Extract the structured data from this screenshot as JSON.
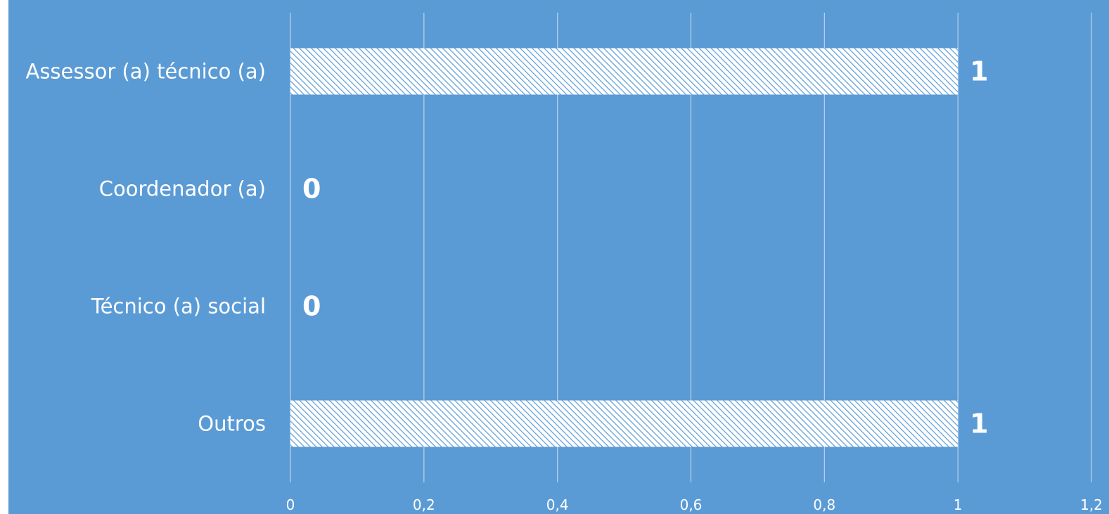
{
  "chart_data": {
    "type": "bar",
    "orientation": "horizontal",
    "categories": [
      "Assessor (a) técnico (a)",
      "Coordenador (a)",
      "Técnico (a) social",
      "Outros"
    ],
    "values": [
      1,
      0,
      0,
      1
    ],
    "data_labels": [
      "1",
      "0",
      "0",
      "1"
    ],
    "title": "",
    "xlabel": "",
    "ylabel": "",
    "xlim": [
      0,
      1.2
    ],
    "x_ticks": [
      0,
      0.2,
      0.4,
      0.6,
      0.8,
      1,
      1.2
    ],
    "x_tick_labels": [
      "0",
      "0,2",
      "0,4",
      "0,6",
      "0,8",
      "1",
      "1,2"
    ],
    "grid": true,
    "legend": "none",
    "colors": {
      "background": "#5b9bd5",
      "bar_pattern_base": "#ffffff",
      "bar_pattern_line": "#5b9bd5",
      "text": "#ffffff",
      "gridline": "#bcd1e9"
    },
    "bar_fill": "diagonal-hatch"
  }
}
